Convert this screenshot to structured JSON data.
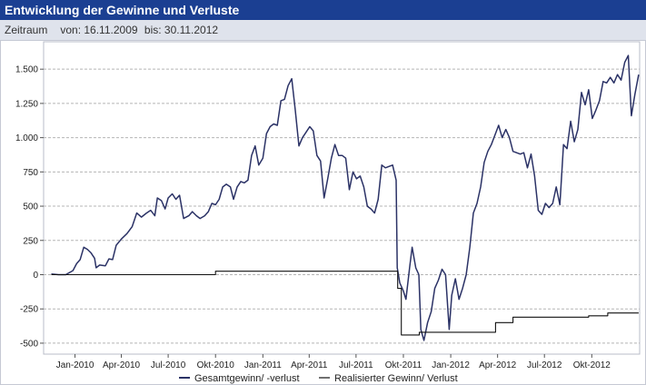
{
  "header": {
    "title": "Entwicklung der Gewinne und Verluste",
    "period_label": "Zeitraum",
    "from_label": "von: 16.11.2009",
    "to_label": "bis: 30.11.2012"
  },
  "chart_data": {
    "type": "line",
    "title": "",
    "xlabel": "",
    "ylabel": "",
    "ylim": [
      -580,
      1700
    ],
    "xlim": [
      "2009-11-01",
      "2013-01-02"
    ],
    "yticks": [
      -500,
      -250,
      0,
      250,
      500,
      750,
      1000,
      1250,
      1500
    ],
    "ytick_labels": [
      "-500",
      "-250",
      "0",
      "250",
      "500",
      "750",
      "1.000",
      "1.250",
      "1.500"
    ],
    "xticks": [
      "2010-01-01",
      "2010-04-01",
      "2010-07-01",
      "2010-10-01",
      "2011-01-01",
      "2011-04-01",
      "2011-07-01",
      "2011-10-01",
      "2012-01-01",
      "2012-04-01",
      "2012-07-01",
      "2012-10-01"
    ],
    "xtick_labels": [
      "Jan-2010",
      "Apr-2010",
      "Jul-2010",
      "Okt-2010",
      "Jan-2011",
      "Apr-2011",
      "Jul-2011",
      "Okt-2011",
      "Jan-2012",
      "Apr-2012",
      "Jul-2012",
      "Okt-2012"
    ],
    "grid": {
      "horizontal": true,
      "vertical": false
    },
    "legend_position": "bottom",
    "series": [
      {
        "name": "Gesamtgewinn/ -verlust",
        "color": "#2b3266",
        "step": false,
        "points": [
          [
            "2009-11-16",
            5
          ],
          [
            "2009-11-30",
            0
          ],
          [
            "2009-12-14",
            0
          ],
          [
            "2009-12-28",
            30
          ],
          [
            "2010-01-04",
            80
          ],
          [
            "2010-01-11",
            110
          ],
          [
            "2010-01-18",
            200
          ],
          [
            "2010-01-25",
            185
          ],
          [
            "2010-02-01",
            160
          ],
          [
            "2010-02-08",
            120
          ],
          [
            "2010-02-11",
            50
          ],
          [
            "2010-02-18",
            70
          ],
          [
            "2010-03-01",
            65
          ],
          [
            "2010-03-08",
            115
          ],
          [
            "2010-03-15",
            110
          ],
          [
            "2010-03-22",
            215
          ],
          [
            "2010-04-01",
            260
          ],
          [
            "2010-04-12",
            300
          ],
          [
            "2010-04-22",
            350
          ],
          [
            "2010-05-01",
            450
          ],
          [
            "2010-05-10",
            420
          ],
          [
            "2010-05-20",
            450
          ],
          [
            "2010-05-28",
            470
          ],
          [
            "2010-06-05",
            430
          ],
          [
            "2010-06-10",
            560
          ],
          [
            "2010-06-18",
            540
          ],
          [
            "2010-06-25",
            480
          ],
          [
            "2010-07-01",
            560
          ],
          [
            "2010-07-09",
            590
          ],
          [
            "2010-07-16",
            550
          ],
          [
            "2010-07-23",
            580
          ],
          [
            "2010-07-31",
            410
          ],
          [
            "2010-08-10",
            430
          ],
          [
            "2010-08-17",
            460
          ],
          [
            "2010-08-25",
            430
          ],
          [
            "2010-09-01",
            410
          ],
          [
            "2010-09-10",
            430
          ],
          [
            "2010-09-17",
            460
          ],
          [
            "2010-09-24",
            520
          ],
          [
            "2010-10-01",
            510
          ],
          [
            "2010-10-08",
            550
          ],
          [
            "2010-10-15",
            640
          ],
          [
            "2010-10-22",
            660
          ],
          [
            "2010-10-30",
            640
          ],
          [
            "2010-11-05",
            550
          ],
          [
            "2010-11-12",
            640
          ],
          [
            "2010-11-19",
            680
          ],
          [
            "2010-11-26",
            670
          ],
          [
            "2010-12-03",
            690
          ],
          [
            "2010-12-10",
            870
          ],
          [
            "2010-12-17",
            940
          ],
          [
            "2010-12-24",
            800
          ],
          [
            "2011-01-01",
            850
          ],
          [
            "2011-01-08",
            1030
          ],
          [
            "2011-01-15",
            1080
          ],
          [
            "2011-01-22",
            1100
          ],
          [
            "2011-01-29",
            1090
          ],
          [
            "2011-02-05",
            1270
          ],
          [
            "2011-02-12",
            1280
          ],
          [
            "2011-02-19",
            1380
          ],
          [
            "2011-02-26",
            1430
          ],
          [
            "2011-03-05",
            1200
          ],
          [
            "2011-03-12",
            940
          ],
          [
            "2011-03-19",
            1000
          ],
          [
            "2011-03-26",
            1040
          ],
          [
            "2011-04-02",
            1080
          ],
          [
            "2011-04-09",
            1050
          ],
          [
            "2011-04-16",
            870
          ],
          [
            "2011-04-23",
            830
          ],
          [
            "2011-04-30",
            560
          ],
          [
            "2011-05-07",
            700
          ],
          [
            "2011-05-14",
            850
          ],
          [
            "2011-05-21",
            950
          ],
          [
            "2011-05-28",
            870
          ],
          [
            "2011-06-04",
            870
          ],
          [
            "2011-06-11",
            850
          ],
          [
            "2011-06-18",
            620
          ],
          [
            "2011-06-25",
            750
          ],
          [
            "2011-07-02",
            700
          ],
          [
            "2011-07-09",
            720
          ],
          [
            "2011-07-16",
            640
          ],
          [
            "2011-07-23",
            500
          ],
          [
            "2011-07-30",
            480
          ],
          [
            "2011-08-06",
            450
          ],
          [
            "2011-08-13",
            550
          ],
          [
            "2011-08-20",
            800
          ],
          [
            "2011-08-27",
            780
          ],
          [
            "2011-09-03",
            790
          ],
          [
            "2011-09-10",
            800
          ],
          [
            "2011-09-17",
            690
          ],
          [
            "2011-09-19",
            50
          ],
          [
            "2011-09-24",
            -60
          ],
          [
            "2011-10-01",
            -120
          ],
          [
            "2011-10-06",
            -180
          ],
          [
            "2011-10-13",
            50
          ],
          [
            "2011-10-18",
            200
          ],
          [
            "2011-10-25",
            50
          ],
          [
            "2011-10-31",
            0
          ],
          [
            "2011-11-04",
            -400
          ],
          [
            "2011-11-10",
            -480
          ],
          [
            "2011-11-17",
            -350
          ],
          [
            "2011-11-24",
            -270
          ],
          [
            "2011-12-01",
            -100
          ],
          [
            "2011-12-08",
            -40
          ],
          [
            "2011-12-15",
            40
          ],
          [
            "2011-12-22",
            0
          ],
          [
            "2011-12-29",
            -400
          ],
          [
            "2012-01-03",
            -150
          ],
          [
            "2012-01-10",
            -30
          ],
          [
            "2012-01-17",
            -180
          ],
          [
            "2012-01-24",
            -100
          ],
          [
            "2012-01-31",
            0
          ],
          [
            "2012-02-07",
            200
          ],
          [
            "2012-02-14",
            450
          ],
          [
            "2012-02-21",
            520
          ],
          [
            "2012-02-28",
            640
          ],
          [
            "2012-03-06",
            820
          ],
          [
            "2012-03-13",
            900
          ],
          [
            "2012-03-20",
            950
          ],
          [
            "2012-03-27",
            1020
          ],
          [
            "2012-04-03",
            1090
          ],
          [
            "2012-04-10",
            1000
          ],
          [
            "2012-04-17",
            1060
          ],
          [
            "2012-04-24",
            1000
          ],
          [
            "2012-05-01",
            900
          ],
          [
            "2012-05-08",
            890
          ],
          [
            "2012-05-15",
            880
          ],
          [
            "2012-05-22",
            890
          ],
          [
            "2012-05-29",
            780
          ],
          [
            "2012-06-05",
            880
          ],
          [
            "2012-06-12",
            720
          ],
          [
            "2012-06-19",
            470
          ],
          [
            "2012-06-26",
            440
          ],
          [
            "2012-07-03",
            520
          ],
          [
            "2012-07-10",
            490
          ],
          [
            "2012-07-17",
            520
          ],
          [
            "2012-07-24",
            640
          ],
          [
            "2012-07-31",
            510
          ],
          [
            "2012-08-07",
            950
          ],
          [
            "2012-08-14",
            920
          ],
          [
            "2012-08-21",
            1120
          ],
          [
            "2012-08-28",
            970
          ],
          [
            "2012-09-04",
            1060
          ],
          [
            "2012-09-11",
            1330
          ],
          [
            "2012-09-18",
            1240
          ],
          [
            "2012-09-25",
            1350
          ],
          [
            "2012-10-02",
            1140
          ],
          [
            "2012-10-09",
            1200
          ],
          [
            "2012-10-16",
            1270
          ],
          [
            "2012-10-23",
            1410
          ],
          [
            "2012-10-30",
            1400
          ],
          [
            "2012-11-06",
            1440
          ],
          [
            "2012-11-13",
            1400
          ],
          [
            "2012-11-20",
            1460
          ],
          [
            "2012-11-27",
            1420
          ],
          [
            "2012-12-04",
            1550
          ],
          [
            "2012-12-11",
            1600
          ],
          [
            "2012-12-17",
            1160
          ],
          [
            "2012-12-24",
            1320
          ],
          [
            "2012-12-31",
            1460
          ]
        ]
      },
      {
        "name": "Realisierter Gewinn/ Verlust",
        "color": "#111111",
        "step": true,
        "points": [
          [
            "2009-11-16",
            0
          ],
          [
            "2010-10-01",
            0
          ],
          [
            "2010-10-01",
            25
          ],
          [
            "2011-09-20",
            25
          ],
          [
            "2011-09-20",
            -100
          ],
          [
            "2011-09-27",
            -100
          ],
          [
            "2011-09-27",
            -440
          ],
          [
            "2011-11-01",
            -440
          ],
          [
            "2011-11-01",
            -420
          ],
          [
            "2012-03-28",
            -420
          ],
          [
            "2012-03-28",
            -350
          ],
          [
            "2012-05-01",
            -350
          ],
          [
            "2012-05-01",
            -310
          ],
          [
            "2012-09-25",
            -310
          ],
          [
            "2012-09-25",
            -300
          ],
          [
            "2012-11-01",
            -300
          ],
          [
            "2012-11-01",
            -280
          ],
          [
            "2012-12-31",
            -280
          ]
        ]
      }
    ]
  }
}
